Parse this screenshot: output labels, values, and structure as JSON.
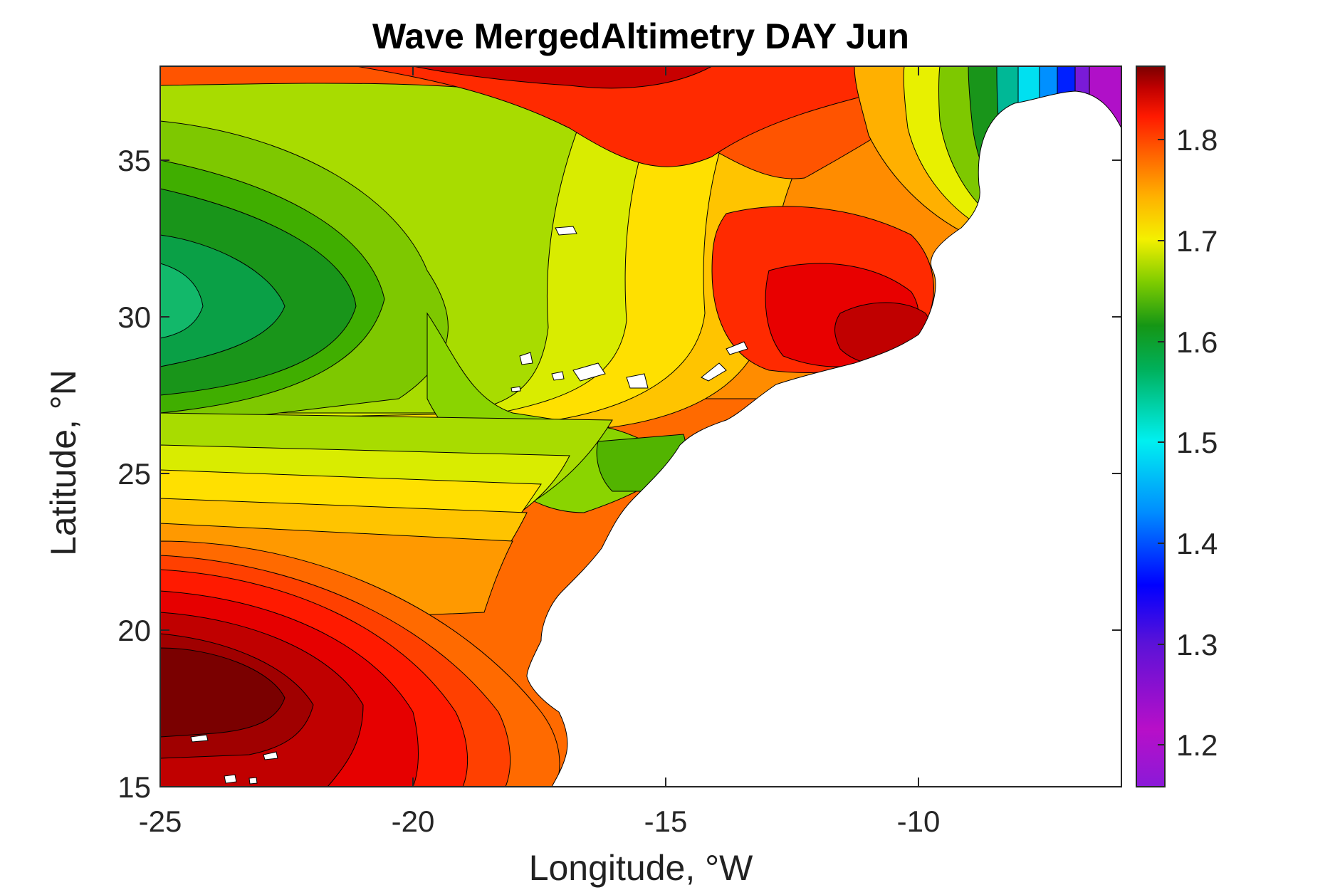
{
  "map": {
    "title": "Wave MergedAltimetry DAY Jun",
    "xlabel": "Longitude, °W",
    "ylabel": "Latitude, °N",
    "x_ticks": [
      "-25",
      "-20",
      "-15",
      "-10"
    ],
    "y_ticks": [
      "15",
      "20",
      "25",
      "30",
      "35"
    ],
    "colorbar_ticks": [
      "1.2",
      "1.3",
      "1.4",
      "1.5",
      "1.6",
      "1.7",
      "1.8"
    ],
    "colorbar_range": [
      1.155,
      1.87
    ],
    "lon_range": [
      -25,
      -6
    ],
    "lat_range": [
      15,
      38
    ],
    "land_color": "#ffffff",
    "contour_line_color": "#000000"
  },
  "chart_data": {
    "type": "heatmap",
    "title": "Wave MergedAltimetry DAY Jun",
    "xlabel": "Longitude, °W",
    "ylabel": "Latitude, °N",
    "xlim": [
      -25,
      -6
    ],
    "ylim": [
      15,
      38
    ],
    "clim": [
      1.155,
      1.87
    ],
    "colormap": "jet-like (purple → blue → cyan → green → yellow → orange → red → dark red)",
    "features": [
      {
        "lon": -24,
        "lat": 18.5,
        "value": 1.86
      },
      {
        "lon": -24.5,
        "lat": 31,
        "value": 1.53
      },
      {
        "lon": -16,
        "lat": 38,
        "value": 1.85
      },
      {
        "lon": -10.5,
        "lat": 30,
        "value": 1.83
      },
      {
        "lon": -14.5,
        "lat": 25.5,
        "value": 1.6
      },
      {
        "lon": -6.8,
        "lat": 36,
        "value": 1.25
      }
    ]
  }
}
